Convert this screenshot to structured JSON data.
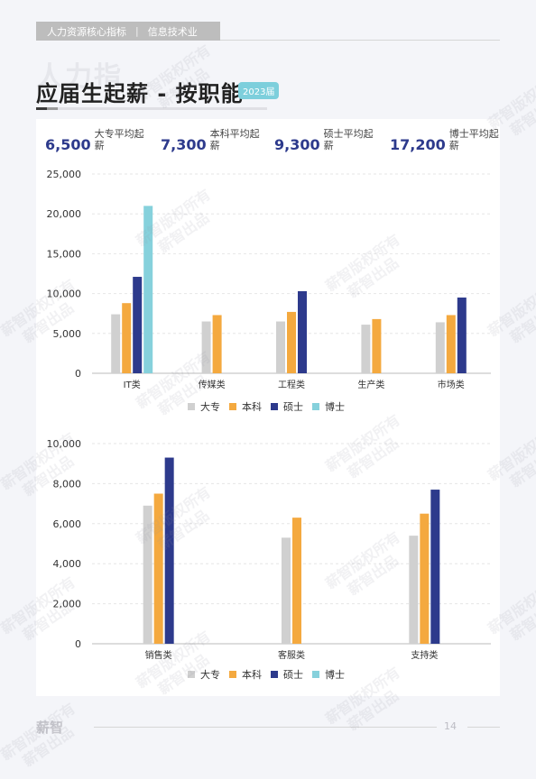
{
  "header": {
    "section": "人力资源核心指标",
    "category": "信息技术业",
    "separator": "|"
  },
  "title": {
    "ghost": "人力指",
    "main": "应届生起薪 - 按职能",
    "year_badge": "2023届"
  },
  "stats": [
    {
      "value": "6,500",
      "label": "大专平均起薪"
    },
    {
      "value": "7,300",
      "label": "本科平均起薪"
    },
    {
      "value": "9,300",
      "label": "硕士平均起薪"
    },
    {
      "value": "17,200",
      "label": "博士平均起薪"
    }
  ],
  "colors": {
    "大专": "#d0d0d0",
    "本科": "#f4a93f",
    "硕士": "#2d3a8c",
    "博士": "#86d1dc"
  },
  "chart_data": [
    {
      "type": "bar",
      "categories": [
        "IT类",
        "传媒类",
        "工程类",
        "生产类",
        "市场类"
      ],
      "series": [
        {
          "name": "大专",
          "values": [
            7400,
            6500,
            6500,
            6100,
            6400
          ]
        },
        {
          "name": "本科",
          "values": [
            8800,
            7300,
            7700,
            6800,
            7300
          ]
        },
        {
          "name": "硕士",
          "values": [
            12100,
            null,
            10300,
            null,
            9500
          ]
        },
        {
          "name": "博士",
          "values": [
            21000,
            null,
            null,
            null,
            null
          ]
        }
      ],
      "ylim": [
        0,
        25000
      ],
      "yticks": [
        "0",
        "5,000",
        "10,000",
        "15,000",
        "20,000",
        "25,000"
      ],
      "grid": true,
      "legend": "bottom"
    },
    {
      "type": "bar",
      "categories": [
        "销售类",
        "客服类",
        "支持类"
      ],
      "series": [
        {
          "name": "大专",
          "values": [
            6900,
            5300,
            5400
          ]
        },
        {
          "name": "本科",
          "values": [
            7500,
            6300,
            6500
          ]
        },
        {
          "name": "硕士",
          "values": [
            9300,
            null,
            7700
          ]
        },
        {
          "name": "博士",
          "values": [
            null,
            null,
            null
          ]
        }
      ],
      "ylim": [
        0,
        10000
      ],
      "yticks": [
        "0",
        "2,000",
        "4,000",
        "6,000",
        "8,000",
        "10,000"
      ],
      "grid": true,
      "legend": "bottom"
    }
  ],
  "footer": {
    "logo": "薪智",
    "page": "14"
  },
  "watermark": {
    "line1": "薪智版权所有",
    "line2": "薪智出品"
  }
}
